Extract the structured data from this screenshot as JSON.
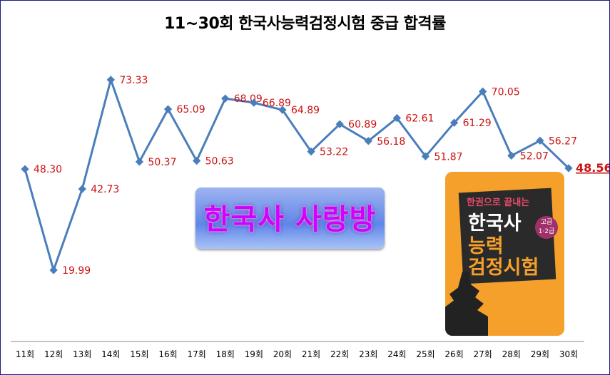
{
  "chart_data": {
    "type": "line",
    "title": "11~30회 한국사능력검정시험 중급 합격률",
    "categories": [
      "11회",
      "12회",
      "13회",
      "14회",
      "15회",
      "16회",
      "17회",
      "18회",
      "19회",
      "20회",
      "21회",
      "22회",
      "23회",
      "24회",
      "25회",
      "26회",
      "27회",
      "28회",
      "29회",
      "30회"
    ],
    "values": [
      48.3,
      19.99,
      42.73,
      73.33,
      50.37,
      65.09,
      50.63,
      68.09,
      66.89,
      64.89,
      53.22,
      60.89,
      56.18,
      62.61,
      51.87,
      61.29,
      70.05,
      52.07,
      56.27,
      48.56
    ],
    "labels": [
      "48.30",
      "19.99",
      "42.73",
      "73.33",
      "50.37",
      "65.09",
      "50.63",
      "68.09",
      "66.89",
      "64.89",
      "53.22",
      "60.89",
      "56.18",
      "62.61",
      "51.87",
      "61.29",
      "70.05",
      "52.07",
      "56.27",
      "48.56"
    ],
    "ylim": [
      0,
      95
    ],
    "grid": false,
    "line_color": "#4a7ebb",
    "label_color": "#cc1111",
    "highlight_last": true
  },
  "banner": {
    "text": "한국사 사랑방"
  },
  "book": {
    "subtitle": "한권으로 끝내는",
    "title1": "한국사",
    "title2": "능력",
    "title3": "검정시험",
    "badge1": "고급",
    "badge2": "1·2급"
  }
}
